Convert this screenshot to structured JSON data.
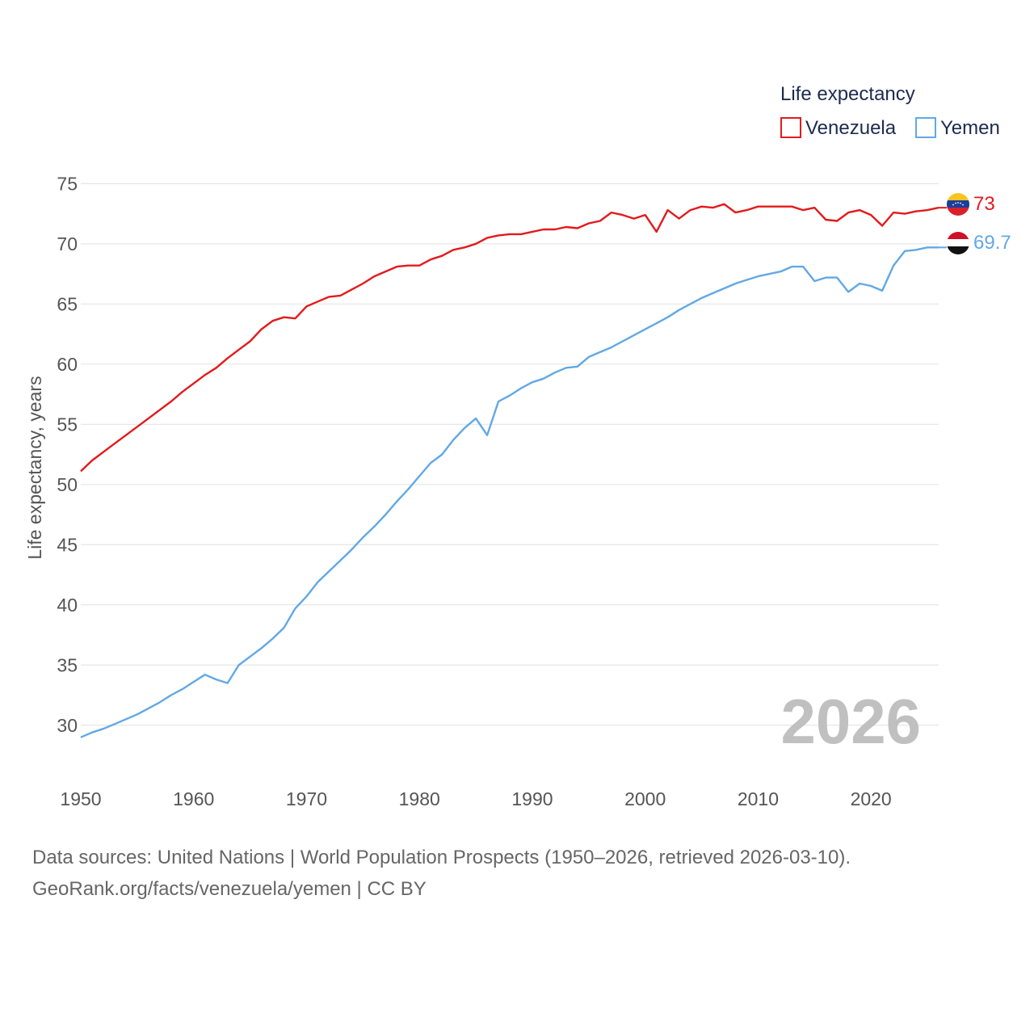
{
  "legend": {
    "title": "Life expectancy",
    "items": [
      {
        "label": "Venezuela",
        "color": "#e31a1c"
      },
      {
        "label": "Yemen",
        "color": "#62a8e5"
      }
    ]
  },
  "watermark_year": "2026",
  "source": {
    "line1": "Data sources: United Nations | World Population Prospects (1950–2026, retrieved 2026-03-10).",
    "line2": "GeoRank.org/facts/venezuela/yemen | CC BY"
  },
  "chart_data": {
    "type": "line",
    "title": "Life expectancy",
    "xlabel": "",
    "ylabel": "Life expectancy, years",
    "xlim": [
      1950,
      2026
    ],
    "ylim": [
      27.5,
      76.5
    ],
    "xticks": [
      1950,
      1960,
      1970,
      1980,
      1990,
      2000,
      2010,
      2020
    ],
    "yticks": [
      30,
      35,
      40,
      45,
      50,
      55,
      60,
      65,
      70,
      75
    ],
    "grid": true,
    "legend_position": "top-right",
    "x": [
      1950,
      1951,
      1952,
      1953,
      1954,
      1955,
      1956,
      1957,
      1958,
      1959,
      1960,
      1961,
      1962,
      1963,
      1964,
      1965,
      1966,
      1967,
      1968,
      1969,
      1970,
      1971,
      1972,
      1973,
      1974,
      1975,
      1976,
      1977,
      1978,
      1979,
      1980,
      1981,
      1982,
      1983,
      1984,
      1985,
      1986,
      1987,
      1988,
      1989,
      1990,
      1991,
      1992,
      1993,
      1994,
      1995,
      1996,
      1997,
      1998,
      1999,
      2000,
      2001,
      2002,
      2003,
      2004,
      2005,
      2006,
      2007,
      2008,
      2009,
      2010,
      2011,
      2012,
      2013,
      2014,
      2015,
      2016,
      2017,
      2018,
      2019,
      2020,
      2021,
      2022,
      2023,
      2024,
      2025,
      2026
    ],
    "series": [
      {
        "name": "Venezuela",
        "color": "#e31a1c",
        "end_label": "73",
        "flag": "venezuela",
        "values": [
          51.1,
          52.0,
          52.7,
          53.4,
          54.1,
          54.8,
          55.5,
          56.2,
          56.9,
          57.7,
          58.4,
          59.1,
          59.7,
          60.5,
          61.2,
          61.9,
          62.9,
          63.6,
          63.9,
          63.8,
          64.8,
          65.2,
          65.6,
          65.7,
          66.2,
          66.7,
          67.3,
          67.7,
          68.1,
          68.2,
          68.2,
          68.7,
          69.0,
          69.5,
          69.7,
          70.0,
          70.5,
          70.7,
          70.8,
          70.8,
          71.0,
          71.2,
          71.2,
          71.4,
          71.3,
          71.7,
          71.9,
          72.6,
          72.4,
          72.1,
          72.4,
          71.0,
          72.8,
          72.1,
          72.8,
          73.1,
          73.0,
          73.3,
          72.6,
          72.8,
          73.1,
          73.1,
          73.1,
          73.1,
          72.8,
          73.0,
          72.0,
          71.9,
          72.6,
          72.8,
          72.4,
          71.5,
          72.6,
          72.5,
          72.7,
          72.8,
          73.0
        ]
      },
      {
        "name": "Yemen",
        "color": "#62a8e5",
        "end_label": "69.7",
        "flag": "yemen",
        "values": [
          29.0,
          29.4,
          29.7,
          30.1,
          30.5,
          30.9,
          31.4,
          31.9,
          32.5,
          33.0,
          33.6,
          34.2,
          33.8,
          33.5,
          35.0,
          35.7,
          36.4,
          37.2,
          38.1,
          39.7,
          40.7,
          41.9,
          42.8,
          43.7,
          44.6,
          45.6,
          46.5,
          47.5,
          48.6,
          49.6,
          50.7,
          51.8,
          52.5,
          53.7,
          54.7,
          55.5,
          54.1,
          56.9,
          57.4,
          58.0,
          58.5,
          58.8,
          59.3,
          59.7,
          59.8,
          60.6,
          61.0,
          61.4,
          61.9,
          62.4,
          62.9,
          63.4,
          63.9,
          64.5,
          65.0,
          65.5,
          65.9,
          66.3,
          66.7,
          67.0,
          67.3,
          67.5,
          67.7,
          68.1,
          68.1,
          66.9,
          67.2,
          67.2,
          66.0,
          66.7,
          66.5,
          66.1,
          68.2,
          69.4,
          69.5,
          69.7,
          69.7
        ]
      }
    ]
  }
}
